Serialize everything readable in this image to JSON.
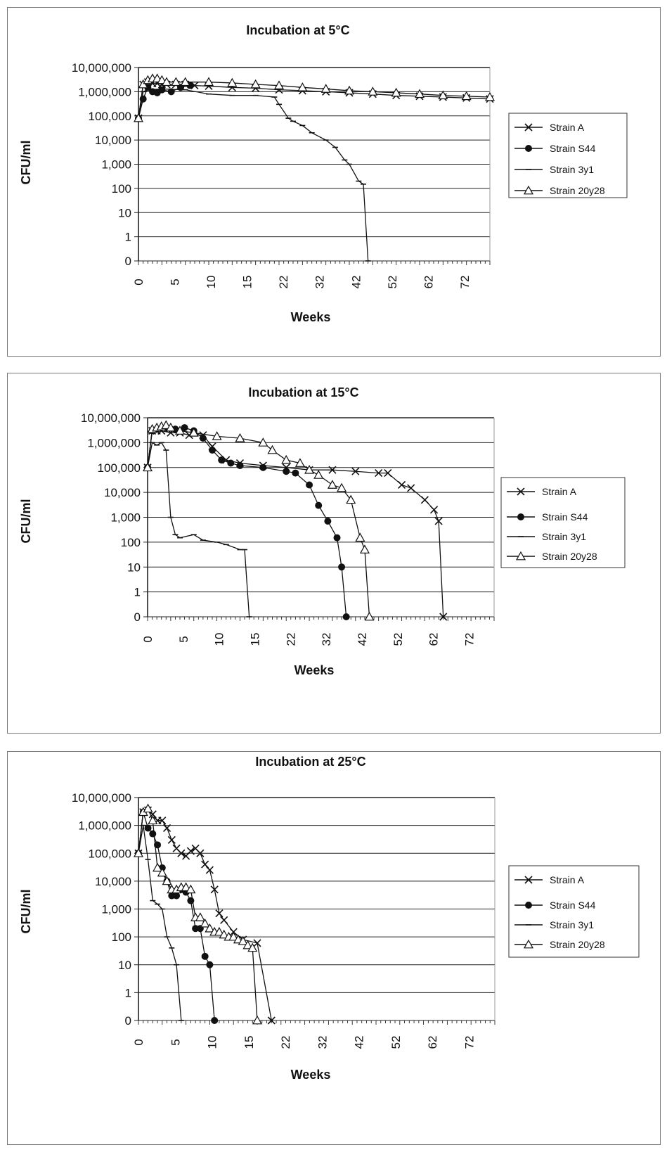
{
  "labels": {
    "ylabel": "CFU/ml",
    "xlabel": "Weeks"
  },
  "chart_data": [
    {
      "type": "line",
      "title": "Incubation at 5°C",
      "xlabel": "Weeks",
      "ylabel": "CFU/ml",
      "yscale": "log",
      "x_ticks": [
        "0",
        "5",
        "10",
        "15",
        "22",
        "32",
        "42",
        "52",
        "62",
        "72"
      ],
      "y_ticks": [
        "10,000,000",
        "1,000,000",
        "100,000",
        "10,000",
        "1,000",
        "100",
        "10",
        "1",
        "0"
      ],
      "xlim": [
        0,
        75
      ],
      "legend": [
        "Strain A",
        "Strain S44",
        "Strain 3y1",
        "Strain 20y28"
      ],
      "legend_position": "right",
      "series": [
        {
          "name": "Strain A",
          "marker": "x",
          "x": [
            0,
            1,
            2,
            3,
            4,
            5,
            6,
            8,
            10,
            12,
            15,
            20,
            25,
            30,
            35,
            40,
            45,
            50,
            55,
            60,
            65,
            70,
            75
          ],
          "y": [
            80000,
            2000000,
            2500000,
            2200000,
            2200000,
            2000000,
            2000000,
            2000000,
            2000000,
            1800000,
            1700000,
            1500000,
            1400000,
            1200000,
            1100000,
            1000000,
            900000,
            800000,
            700000,
            650000,
            600000,
            550000,
            500000
          ]
        },
        {
          "name": "Strain S44",
          "marker": "circle",
          "x": [
            0,
            1,
            2,
            3,
            4,
            5,
            7,
            9,
            11
          ],
          "y": [
            80000,
            500000,
            1500000,
            1000000,
            900000,
            1200000,
            1000000,
            1500000,
            1800000
          ]
        },
        {
          "name": "Strain 3y1",
          "marker": "dash",
          "x": [
            0,
            1,
            2,
            5,
            10,
            15,
            20,
            25,
            29,
            30,
            32,
            33,
            35,
            37,
            40,
            42,
            44,
            45,
            47,
            48,
            49
          ],
          "y": [
            80000,
            1000000,
            1200000,
            1300000,
            1200000,
            800000,
            700000,
            700000,
            600000,
            300000,
            80000,
            60000,
            40000,
            20000,
            10000,
            5000,
            1500,
            1000,
            200,
            150,
            0
          ]
        },
        {
          "name": "Strain 20y28",
          "marker": "triangle",
          "x": [
            0,
            1,
            2,
            3,
            4,
            5,
            6,
            8,
            10,
            15,
            20,
            25,
            30,
            35,
            40,
            45,
            50,
            55,
            60,
            65,
            70,
            75
          ],
          "y": [
            80000,
            2000000,
            3000000,
            3500000,
            3500000,
            3000000,
            2500000,
            2500000,
            2500000,
            2500000,
            2300000,
            2000000,
            1800000,
            1500000,
            1300000,
            1100000,
            1000000,
            900000,
            800000,
            700000,
            650000,
            600000
          ]
        }
      ]
    },
    {
      "type": "line",
      "title": "Incubation at 15°C",
      "xlabel": "Weeks",
      "ylabel": "CFU/ml",
      "yscale": "log",
      "x_ticks": [
        "0",
        "5",
        "10",
        "15",
        "22",
        "32",
        "42",
        "52",
        "62",
        "72"
      ],
      "y_ticks": [
        "10,000,000",
        "1,000,000",
        "100,000",
        "10,000",
        "1,000",
        "100",
        "10",
        "1",
        "0"
      ],
      "xlim": [
        0,
        75
      ],
      "legend": [
        "Strain A",
        "Strain S44",
        "Strain 3y1",
        "Strain 20y28"
      ],
      "legend_position": "right",
      "series": [
        {
          "name": "Strain A",
          "marker": "x",
          "x": [
            0,
            1,
            2,
            3,
            5,
            7,
            9,
            12,
            14,
            17,
            20,
            25,
            30,
            35,
            40,
            45,
            50,
            52,
            55,
            57,
            60,
            62,
            63,
            64
          ],
          "y": [
            100000,
            3000000,
            3000000,
            3000000,
            2500000,
            2500000,
            2000000,
            2000000,
            700000,
            200000,
            150000,
            120000,
            100000,
            80000,
            80000,
            70000,
            60000,
            60000,
            20000,
            15000,
            5000,
            2000,
            700,
            0
          ]
        },
        {
          "name": "Strain S44",
          "marker": "circle",
          "x": [
            0,
            1,
            2,
            4,
            6,
            8,
            10,
            12,
            14,
            16,
            18,
            20,
            25,
            30,
            32,
            35,
            37,
            39,
            41,
            42,
            43
          ],
          "y": [
            100000,
            3000000,
            3500000,
            4000000,
            3500000,
            4000000,
            3000000,
            1500000,
            500000,
            200000,
            150000,
            120000,
            100000,
            70000,
            60000,
            20000,
            3000,
            700,
            150,
            10,
            0
          ]
        },
        {
          "name": "Strain 3y1",
          "marker": "dash",
          "x": [
            0,
            1,
            2,
            3,
            4,
            5,
            6,
            7,
            10,
            12,
            15,
            17,
            20,
            21,
            22
          ],
          "y": [
            100000,
            1000000,
            800000,
            1000000,
            500000,
            1000,
            200,
            150,
            200,
            120,
            100,
            80,
            50,
            50,
            0
          ]
        },
        {
          "name": "Strain 20y28",
          "marker": "triangle",
          "x": [
            0,
            1,
            2,
            3,
            4,
            5,
            7,
            10,
            15,
            20,
            25,
            27,
            30,
            33,
            35,
            37,
            40,
            42,
            44,
            46,
            47,
            48
          ],
          "y": [
            100000,
            3500000,
            4000000,
            4500000,
            5000000,
            4000000,
            3000000,
            2500000,
            1800000,
            1500000,
            1000000,
            500000,
            200000,
            150000,
            80000,
            50000,
            20000,
            15000,
            5000,
            150,
            50,
            0
          ]
        }
      ]
    },
    {
      "type": "line",
      "title": "Incubation at 25°C",
      "xlabel": "Weeks",
      "ylabel": "CFU/ml",
      "yscale": "log",
      "x_ticks": [
        "0",
        "5",
        "10",
        "15",
        "22",
        "32",
        "42",
        "52",
        "62",
        "72"
      ],
      "y_ticks": [
        "10,000,000",
        "1,000,000",
        "100,000",
        "10,000",
        "1,000",
        "100",
        "10",
        "1",
        "0"
      ],
      "xlim": [
        0,
        75
      ],
      "legend": [
        "Strain A",
        "Strain S44",
        "Strain 3y1",
        "Strain 20y28"
      ],
      "legend_position": "right",
      "series": [
        {
          "name": "Strain A",
          "marker": "x",
          "x": [
            0,
            1,
            2,
            3,
            4,
            5,
            6,
            7,
            8,
            9,
            10,
            11,
            12,
            13,
            14,
            15,
            16,
            17,
            18,
            20,
            22,
            25,
            28
          ],
          "y": [
            100000,
            3000000,
            3500000,
            2500000,
            1500000,
            1500000,
            800000,
            300000,
            150000,
            100000,
            80000,
            120000,
            150000,
            100000,
            40000,
            25000,
            5000,
            700,
            400,
            150,
            80,
            60,
            0
          ]
        },
        {
          "name": "Strain S44",
          "marker": "circle",
          "x": [
            0,
            1,
            2,
            3,
            4,
            5,
            6,
            7,
            8,
            9,
            10,
            11,
            12,
            13,
            14,
            15,
            16
          ],
          "y": [
            100000,
            3000000,
            800000,
            500000,
            200000,
            30000,
            10000,
            3000,
            3000,
            5000,
            4000,
            2000,
            200,
            200,
            20,
            10,
            0
          ]
        },
        {
          "name": "Strain 3y1",
          "marker": "dash",
          "x": [
            0,
            1,
            2,
            3,
            4,
            5,
            6,
            7,
            8,
            9
          ],
          "y": [
            100000,
            1000000,
            60000,
            2000,
            1500,
            1000,
            100,
            40,
            10,
            0
          ]
        },
        {
          "name": "Strain 20y28",
          "marker": "triangle",
          "x": [
            0,
            1,
            2,
            3,
            4,
            5,
            6,
            7,
            8,
            9,
            10,
            11,
            12,
            13,
            14,
            15,
            16,
            17,
            18,
            19,
            20,
            21,
            22,
            23,
            24,
            25
          ],
          "y": [
            100000,
            3000000,
            4000000,
            1500000,
            30000,
            20000,
            10000,
            5000,
            5000,
            6000,
            6000,
            5000,
            500,
            500,
            300,
            200,
            150,
            150,
            120,
            100,
            100,
            80,
            70,
            50,
            40,
            0
          ]
        }
      ]
    }
  ]
}
